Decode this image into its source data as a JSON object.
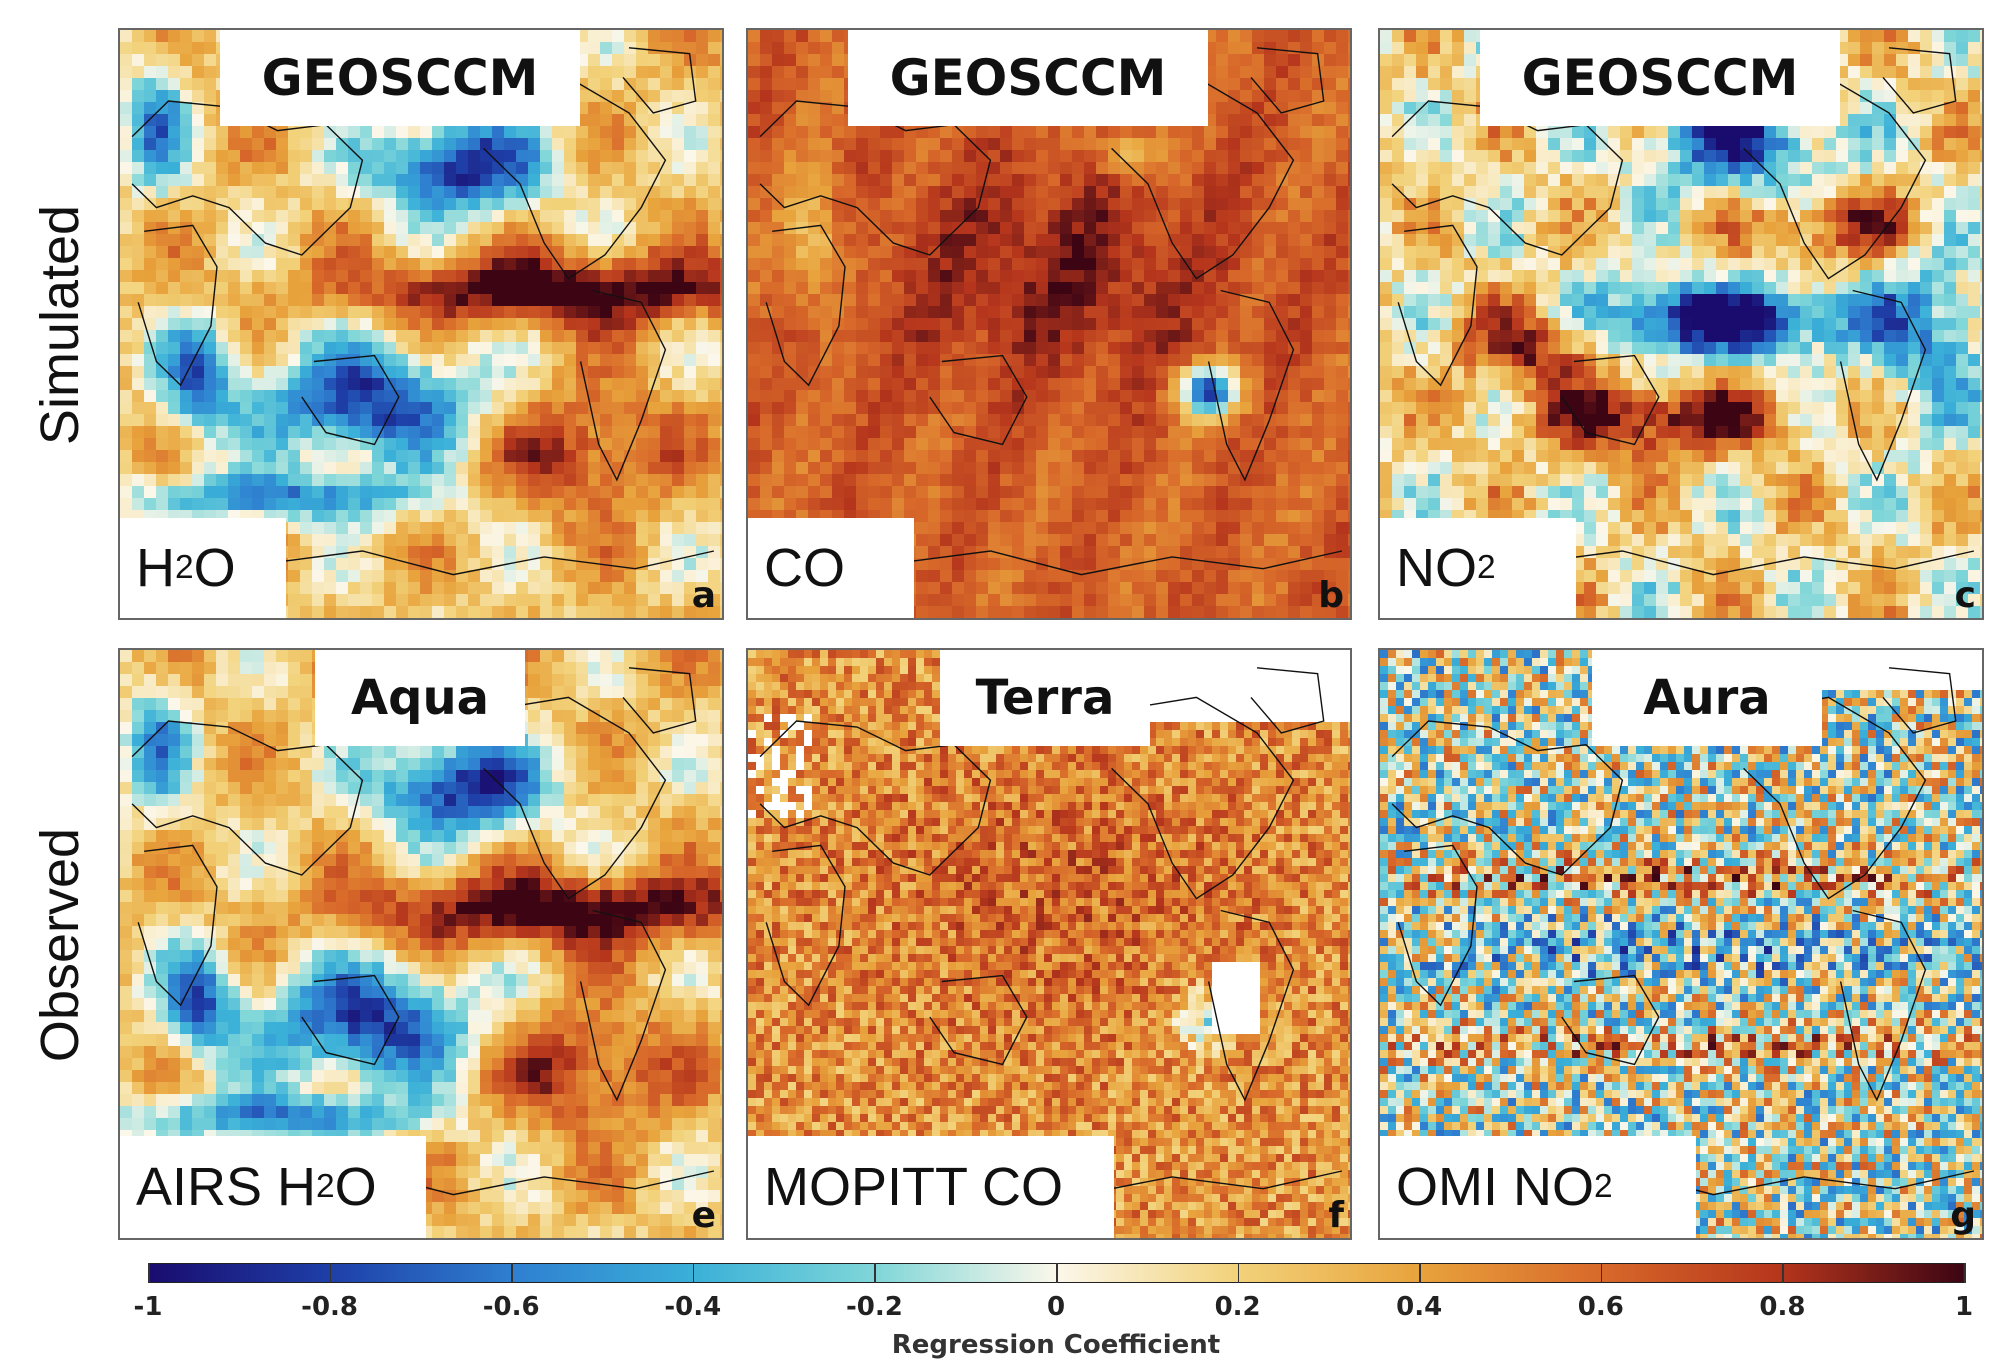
{
  "rows": [
    {
      "label": "Simulated"
    },
    {
      "label": "Observed"
    }
  ],
  "panels": [
    {
      "letter": "a",
      "title": "GEOSCCM",
      "name_main": "H",
      "name_sub": "2",
      "name_tail": "O",
      "pattern": "h2o",
      "row": 0,
      "col": 0
    },
    {
      "letter": "b",
      "title": "GEOSCCM",
      "name_main": "CO",
      "name_sub": "",
      "name_tail": "",
      "pattern": "co",
      "row": 0,
      "col": 1
    },
    {
      "letter": "c",
      "title": "GEOSCCM",
      "name_main": "NO",
      "name_sub": "2",
      "name_tail": "",
      "pattern": "no2",
      "row": 0,
      "col": 2
    },
    {
      "letter": "e",
      "title": "Aqua",
      "name_main": "AIRS H",
      "name_sub": "2",
      "name_tail": "O",
      "pattern": "h2o",
      "row": 1,
      "col": 0
    },
    {
      "letter": "f",
      "title": "Terra",
      "name_main": "MOPITT CO",
      "name_sub": "",
      "name_tail": "",
      "pattern": "mopitt",
      "row": 1,
      "col": 1
    },
    {
      "letter": "g",
      "title": "Aura",
      "name_main": "OMI NO",
      "name_sub": "2",
      "name_tail": "",
      "pattern": "omi",
      "row": 1,
      "col": 2
    }
  ],
  "colorbar": {
    "title": "Regression Coefficient",
    "min": -1,
    "max": 1,
    "ticks": [
      "-1",
      "-0.8",
      "-0.6",
      "-0.4",
      "-0.2",
      "0",
      "0.2",
      "0.4",
      "0.6",
      "0.8",
      "1"
    ],
    "tick_values": [
      -1,
      -0.8,
      -0.6,
      -0.4,
      -0.2,
      0,
      0.2,
      0.4,
      0.6,
      0.8,
      1
    ],
    "colors": [
      "#1a0c6e",
      "#1e3fa8",
      "#2f7fd0",
      "#3ab0d8",
      "#7fd6d8",
      "#fbf7ea",
      "#f2d27a",
      "#e8a33c",
      "#d8692a",
      "#b5351c",
      "#3d0514"
    ]
  }
}
